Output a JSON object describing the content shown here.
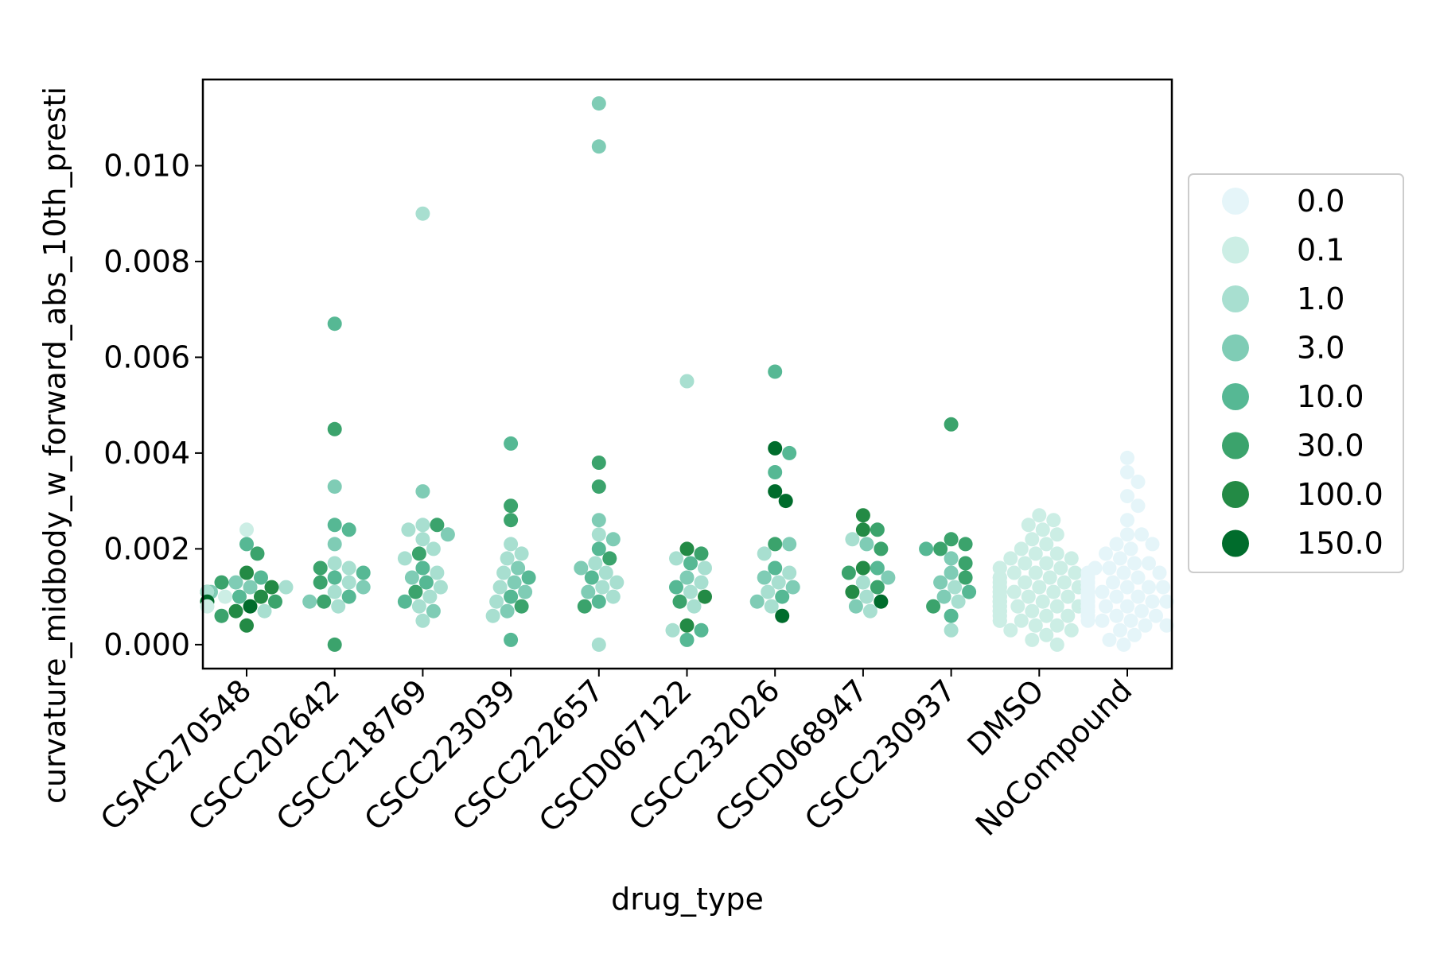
{
  "chart_data": {
    "type": "scatter",
    "subtype": "swarm",
    "xlabel": "drug_type",
    "ylabel": "curvature_midbody_w_forward_abs_10th_presti",
    "categories": [
      "CSAC270548",
      "CSCC202642",
      "CSCC218769",
      "CSCC223039",
      "CSCC222657",
      "CSCD067122",
      "CSCC232026",
      "CSCD068947",
      "CSCC230937",
      "DMSO",
      "NoCompound"
    ],
    "y_ticks": [
      "0.000",
      "0.002",
      "0.004",
      "0.006",
      "0.008",
      "0.010"
    ],
    "ylim": [
      -0.0005,
      0.0118
    ],
    "grid": false,
    "legend": {
      "placement": "outside right",
      "entries": [
        {
          "label": "0.0",
          "color": "#e5f5f9"
        },
        {
          "label": "0.1",
          "color": "#cceee5"
        },
        {
          "label": "1.0",
          "color": "#a8dfd0"
        },
        {
          "label": "3.0",
          "color": "#7fccb5"
        },
        {
          "label": "10.0",
          "color": "#56b894"
        },
        {
          "label": "30.0",
          "color": "#3ba36c"
        },
        {
          "label": "100.0",
          "color": "#238a45"
        },
        {
          "label": "150.0",
          "color": "#006c2c"
        }
      ]
    },
    "series": [
      {
        "category": "CSAC270548",
        "points": [
          {
            "dose": "0.1",
            "y": 0.0024
          },
          {
            "dose": "3.0",
            "y": 0.0013
          },
          {
            "dose": "3.0",
            "y": 0.0012
          },
          {
            "dose": "3.0",
            "y": 0.0011
          },
          {
            "dose": "10.0",
            "y": 0.0021
          },
          {
            "dose": "10.0",
            "y": 0.0014
          },
          {
            "dose": "10.0",
            "y": 0.001
          },
          {
            "dose": "30.0",
            "y": 0.0019
          },
          {
            "dose": "30.0",
            "y": 0.0013
          },
          {
            "dose": "30.0",
            "y": 0.0009
          },
          {
            "dose": "30.0",
            "y": 0.0006
          },
          {
            "dose": "100.0",
            "y": 0.0015
          },
          {
            "dose": "100.0",
            "y": 0.0012
          },
          {
            "dose": "100.0",
            "y": 0.001
          },
          {
            "dose": "100.0",
            "y": 0.0007
          },
          {
            "dose": "100.0",
            "y": 0.0004
          },
          {
            "dose": "150.0",
            "y": 0.0011
          },
          {
            "dose": "150.0",
            "y": 0.0009
          },
          {
            "dose": "150.0",
            "y": 0.0008
          },
          {
            "dose": "1.0",
            "y": 0.0012
          },
          {
            "dose": "1.0",
            "y": 0.0011
          },
          {
            "dose": "0.1",
            "y": 0.001
          },
          {
            "dose": "0.1",
            "y": 0.0008
          },
          {
            "dose": "1.0",
            "y": 0.0007
          }
        ]
      },
      {
        "category": "CSCC202642",
        "points": [
          {
            "dose": "10.0",
            "y": 0.0067
          },
          {
            "dose": "30.0",
            "y": 0.0045
          },
          {
            "dose": "3.0",
            "y": 0.0033
          },
          {
            "dose": "10.0",
            "y": 0.0025
          },
          {
            "dose": "10.0",
            "y": 0.0024
          },
          {
            "dose": "3.0",
            "y": 0.0021
          },
          {
            "dose": "1.0",
            "y": 0.0017
          },
          {
            "dose": "1.0",
            "y": 0.0016
          },
          {
            "dose": "30.0",
            "y": 0.0016
          },
          {
            "dose": "10.0",
            "y": 0.0015
          },
          {
            "dose": "10.0",
            "y": 0.0014
          },
          {
            "dose": "1.0",
            "y": 0.0013
          },
          {
            "dose": "30.0",
            "y": 0.0013
          },
          {
            "dose": "3.0",
            "y": 0.0012
          },
          {
            "dose": "1.0",
            "y": 0.0011
          },
          {
            "dose": "10.0",
            "y": 0.001
          },
          {
            "dose": "30.0",
            "y": 0.0009
          },
          {
            "dose": "3.0",
            "y": 0.0009
          },
          {
            "dose": "1.0",
            "y": 0.0008
          },
          {
            "dose": "30.0",
            "y": 0.0
          }
        ]
      },
      {
        "category": "CSCC218769",
        "points": [
          {
            "dose": "1.0",
            "y": 0.009
          },
          {
            "dose": "3.0",
            "y": 0.0032
          },
          {
            "dose": "1.0",
            "y": 0.0025
          },
          {
            "dose": "30.0",
            "y": 0.0025
          },
          {
            "dose": "1.0",
            "y": 0.0024
          },
          {
            "dose": "3.0",
            "y": 0.0023
          },
          {
            "dose": "1.0",
            "y": 0.0022
          },
          {
            "dose": "1.0",
            "y": 0.002
          },
          {
            "dose": "30.0",
            "y": 0.0019
          },
          {
            "dose": "1.0",
            "y": 0.0018
          },
          {
            "dose": "10.0",
            "y": 0.0016
          },
          {
            "dose": "1.0",
            "y": 0.0015
          },
          {
            "dose": "3.0",
            "y": 0.0014
          },
          {
            "dose": "10.0",
            "y": 0.0013
          },
          {
            "dose": "1.0",
            "y": 0.0012
          },
          {
            "dose": "30.0",
            "y": 0.0011
          },
          {
            "dose": "1.0",
            "y": 0.001
          },
          {
            "dose": "10.0",
            "y": 0.0009
          },
          {
            "dose": "1.0",
            "y": 0.0008
          },
          {
            "dose": "3.0",
            "y": 0.0007
          },
          {
            "dose": "1.0",
            "y": 0.0005
          }
        ]
      },
      {
        "category": "CSCC223039",
        "points": [
          {
            "dose": "10.0",
            "y": 0.0042
          },
          {
            "dose": "30.0",
            "y": 0.0029
          },
          {
            "dose": "30.0",
            "y": 0.0026
          },
          {
            "dose": "1.0",
            "y": 0.0021
          },
          {
            "dose": "1.0",
            "y": 0.0019
          },
          {
            "dose": "1.0",
            "y": 0.0018
          },
          {
            "dose": "3.0",
            "y": 0.0016
          },
          {
            "dose": "1.0",
            "y": 0.0015
          },
          {
            "dose": "10.0",
            "y": 0.0014
          },
          {
            "dose": "3.0",
            "y": 0.0013
          },
          {
            "dose": "1.0",
            "y": 0.0012
          },
          {
            "dose": "3.0",
            "y": 0.0011
          },
          {
            "dose": "10.0",
            "y": 0.001
          },
          {
            "dose": "1.0",
            "y": 0.0009
          },
          {
            "dose": "30.0",
            "y": 0.0008
          },
          {
            "dose": "3.0",
            "y": 0.0007
          },
          {
            "dose": "1.0",
            "y": 0.0006
          },
          {
            "dose": "10.0",
            "y": 0.0001
          }
        ]
      },
      {
        "category": "CSCC222657",
        "points": [
          {
            "dose": "3.0",
            "y": 0.0113
          },
          {
            "dose": "3.0",
            "y": 0.0104
          },
          {
            "dose": "30.0",
            "y": 0.0038
          },
          {
            "dose": "30.0",
            "y": 0.0033
          },
          {
            "dose": "3.0",
            "y": 0.0026
          },
          {
            "dose": "1.0",
            "y": 0.0023
          },
          {
            "dose": "3.0",
            "y": 0.0022
          },
          {
            "dose": "10.0",
            "y": 0.002
          },
          {
            "dose": "30.0",
            "y": 0.0018
          },
          {
            "dose": "1.0",
            "y": 0.0017
          },
          {
            "dose": "3.0",
            "y": 0.0016
          },
          {
            "dose": "1.0",
            "y": 0.0015
          },
          {
            "dose": "10.0",
            "y": 0.0014
          },
          {
            "dose": "1.0",
            "y": 0.0013
          },
          {
            "dose": "1.0",
            "y": 0.0012
          },
          {
            "dose": "3.0",
            "y": 0.0011
          },
          {
            "dose": "1.0",
            "y": 0.001
          },
          {
            "dose": "10.0",
            "y": 0.0009
          },
          {
            "dose": "30.0",
            "y": 0.0008
          },
          {
            "dose": "1.0",
            "y": 0.0
          }
        ]
      },
      {
        "category": "CSCD067122",
        "points": [
          {
            "dose": "1.0",
            "y": 0.0055
          },
          {
            "dose": "100.0",
            "y": 0.002
          },
          {
            "dose": "30.0",
            "y": 0.0019
          },
          {
            "dose": "1.0",
            "y": 0.0018
          },
          {
            "dose": "10.0",
            "y": 0.0017
          },
          {
            "dose": "1.0",
            "y": 0.0016
          },
          {
            "dose": "3.0",
            "y": 0.0014
          },
          {
            "dose": "1.0",
            "y": 0.0013
          },
          {
            "dose": "10.0",
            "y": 0.0012
          },
          {
            "dose": "1.0",
            "y": 0.0011
          },
          {
            "dose": "100.0",
            "y": 0.001
          },
          {
            "dose": "30.0",
            "y": 0.0009
          },
          {
            "dose": "1.0",
            "y": 0.0008
          },
          {
            "dose": "100.0",
            "y": 0.0004
          },
          {
            "dose": "10.0",
            "y": 0.0003
          },
          {
            "dose": "1.0",
            "y": 0.0003
          },
          {
            "dose": "10.0",
            "y": 0.0001
          }
        ]
      },
      {
        "category": "CSCC232026",
        "points": [
          {
            "dose": "10.0",
            "y": 0.0057
          },
          {
            "dose": "150.0",
            "y": 0.0041
          },
          {
            "dose": "10.0",
            "y": 0.004
          },
          {
            "dose": "10.0",
            "y": 0.0036
          },
          {
            "dose": "150.0",
            "y": 0.0032
          },
          {
            "dose": "150.0",
            "y": 0.003
          },
          {
            "dose": "30.0",
            "y": 0.0021
          },
          {
            "dose": "3.0",
            "y": 0.0021
          },
          {
            "dose": "1.0",
            "y": 0.0019
          },
          {
            "dose": "10.0",
            "y": 0.0016
          },
          {
            "dose": "1.0",
            "y": 0.0015
          },
          {
            "dose": "3.0",
            "y": 0.0014
          },
          {
            "dose": "1.0",
            "y": 0.0013
          },
          {
            "dose": "3.0",
            "y": 0.0012
          },
          {
            "dose": "1.0",
            "y": 0.0011
          },
          {
            "dose": "10.0",
            "y": 0.001
          },
          {
            "dose": "3.0",
            "y": 0.0009
          },
          {
            "dose": "1.0",
            "y": 0.0008
          },
          {
            "dose": "150.0",
            "y": 0.0006
          }
        ]
      },
      {
        "category": "CSCD068947",
        "points": [
          {
            "dose": "100.0",
            "y": 0.0027
          },
          {
            "dose": "100.0",
            "y": 0.0024
          },
          {
            "dose": "30.0",
            "y": 0.0024
          },
          {
            "dose": "1.0",
            "y": 0.0022
          },
          {
            "dose": "3.0",
            "y": 0.0021
          },
          {
            "dose": "30.0",
            "y": 0.002
          },
          {
            "dose": "100.0",
            "y": 0.0016
          },
          {
            "dose": "10.0",
            "y": 0.0016
          },
          {
            "dose": "30.0",
            "y": 0.0015
          },
          {
            "dose": "3.0",
            "y": 0.0014
          },
          {
            "dose": "1.0",
            "y": 0.0013
          },
          {
            "dose": "30.0",
            "y": 0.0012
          },
          {
            "dose": "100.0",
            "y": 0.0011
          },
          {
            "dose": "1.0",
            "y": 0.001
          },
          {
            "dose": "150.0",
            "y": 0.0009
          },
          {
            "dose": "3.0",
            "y": 0.0008
          },
          {
            "dose": "1.0",
            "y": 0.0007
          }
        ]
      },
      {
        "category": "CSCC230937",
        "points": [
          {
            "dose": "30.0",
            "y": 0.0046
          },
          {
            "dose": "30.0",
            "y": 0.0022
          },
          {
            "dose": "30.0",
            "y": 0.0021
          },
          {
            "dose": "30.0",
            "y": 0.002
          },
          {
            "dose": "10.0",
            "y": 0.002
          },
          {
            "dose": "3.0",
            "y": 0.0018
          },
          {
            "dose": "30.0",
            "y": 0.0017
          },
          {
            "dose": "3.0",
            "y": 0.0015
          },
          {
            "dose": "30.0",
            "y": 0.0014
          },
          {
            "dose": "3.0",
            "y": 0.0013
          },
          {
            "dose": "1.0",
            "y": 0.0012
          },
          {
            "dose": "10.0",
            "y": 0.0011
          },
          {
            "dose": "3.0",
            "y": 0.001
          },
          {
            "dose": "1.0",
            "y": 0.0009
          },
          {
            "dose": "30.0",
            "y": 0.0008
          },
          {
            "dose": "10.0",
            "y": 0.0006
          },
          {
            "dose": "1.0",
            "y": 0.0003
          }
        ]
      },
      {
        "category": "DMSO",
        "dose": "0.1",
        "y": [
          0.0027,
          0.0026,
          0.0025,
          0.0024,
          0.0023,
          0.0022,
          0.0021,
          0.002,
          0.0019,
          0.0019,
          0.0018,
          0.0018,
          0.0017,
          0.0017,
          0.0016,
          0.0016,
          0.0016,
          0.0015,
          0.0015,
          0.0015,
          0.0014,
          0.0014,
          0.0014,
          0.0014,
          0.0013,
          0.0013,
          0.0013,
          0.0013,
          0.0012,
          0.0012,
          0.0012,
          0.0012,
          0.0012,
          0.0011,
          0.0011,
          0.0011,
          0.0011,
          0.0011,
          0.001,
          0.001,
          0.001,
          0.001,
          0.001,
          0.001,
          0.0009,
          0.0009,
          0.0009,
          0.0009,
          0.0009,
          0.0009,
          0.0008,
          0.0008,
          0.0008,
          0.0008,
          0.0008,
          0.0008,
          0.0007,
          0.0007,
          0.0007,
          0.0007,
          0.0007,
          0.0006,
          0.0006,
          0.0006,
          0.0006,
          0.0005,
          0.0005,
          0.0005,
          0.0004,
          0.0004,
          0.0003,
          0.0003,
          0.0002,
          0.0001,
          0.0
        ]
      },
      {
        "category": "NoCompound",
        "dose": "0.0",
        "y": [
          0.0039,
          0.0036,
          0.0034,
          0.0031,
          0.0029,
          0.0026,
          0.0023,
          0.0023,
          0.0021,
          0.0021,
          0.002,
          0.0019,
          0.0018,
          0.0017,
          0.0017,
          0.0016,
          0.0016,
          0.0015,
          0.0015,
          0.0015,
          0.0014,
          0.0014,
          0.0014,
          0.0013,
          0.0013,
          0.0013,
          0.0013,
          0.0012,
          0.0012,
          0.0012,
          0.0012,
          0.0011,
          0.0011,
          0.0011,
          0.0011,
          0.0011,
          0.001,
          0.001,
          0.001,
          0.001,
          0.001,
          0.001,
          0.0009,
          0.0009,
          0.0009,
          0.0009,
          0.0009,
          0.0009,
          0.0008,
          0.0008,
          0.0008,
          0.0008,
          0.0008,
          0.0008,
          0.0007,
          0.0007,
          0.0007,
          0.0007,
          0.0007,
          0.0006,
          0.0006,
          0.0006,
          0.0006,
          0.0005,
          0.0005,
          0.0005,
          0.0004,
          0.0004,
          0.0003,
          0.0002,
          0.0001,
          0.0
        ]
      }
    ]
  }
}
